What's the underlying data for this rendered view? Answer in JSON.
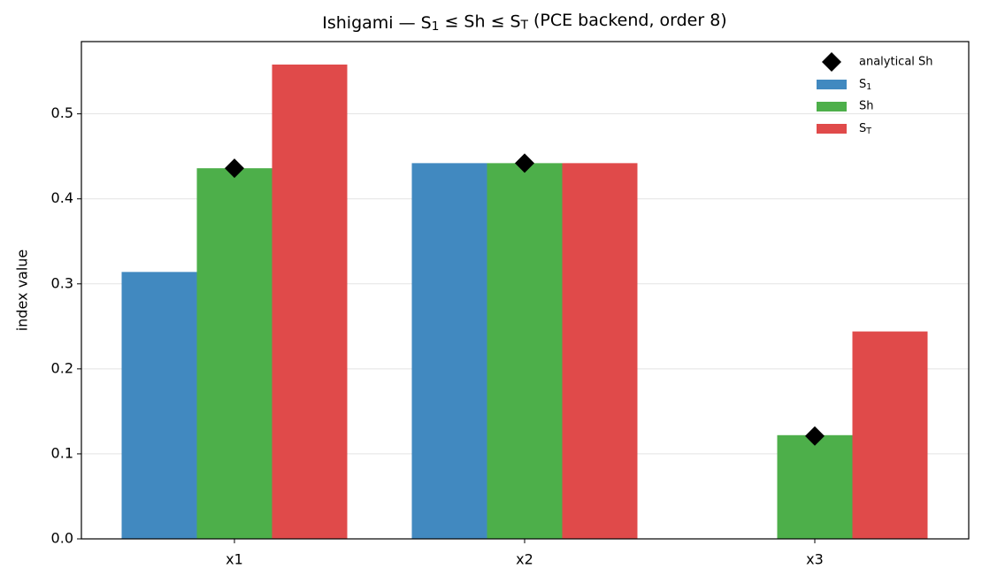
{
  "chart_data": {
    "type": "bar",
    "title": "Ishigami — S_1 ≤ Sh ≤ S_T (PCE backend, order 8)",
    "ylabel": "index value",
    "categories": [
      "x1",
      "x2",
      "x3"
    ],
    "series": [
      {
        "name": "S_1",
        "color": "#4189c0",
        "values": [
          0.314,
          0.442,
          0
        ]
      },
      {
        "name": "Sh",
        "color": "#4daf4a",
        "values": [
          0.436,
          0.442,
          0.122
        ]
      },
      {
        "name": "S_T",
        "color": "#e04a4a",
        "values": [
          0.558,
          0.442,
          0.244
        ]
      }
    ],
    "markers": {
      "name": "analytical Sh",
      "color": "#000000",
      "shape": "diamond",
      "values": [
        0.436,
        0.442,
        0.121
      ]
    },
    "ylim": [
      0,
      0.585
    ],
    "yticks": [
      {
        "value": 0,
        "label": "0.0"
      },
      0.1,
      0.2,
      0.3,
      0.4,
      0.5
    ],
    "grid": true,
    "legend": "upper right"
  }
}
